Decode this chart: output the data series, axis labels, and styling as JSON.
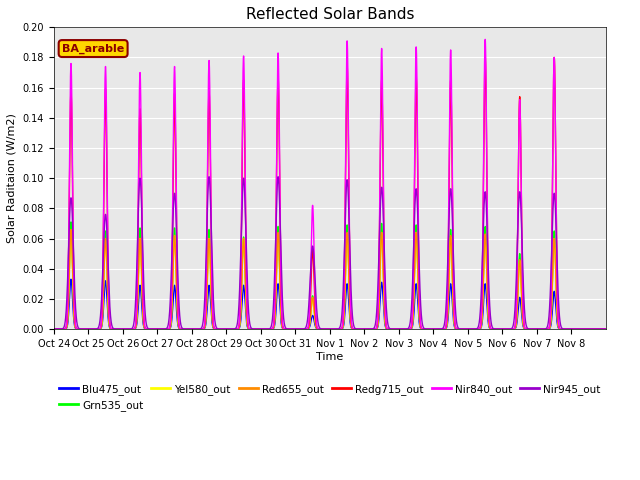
{
  "title": "Reflected Solar Bands",
  "xlabel": "Time",
  "ylabel": "Solar Raditaion (W/m2)",
  "ylim": [
    0.0,
    0.2
  ],
  "yticks": [
    0.0,
    0.02,
    0.04,
    0.06,
    0.08,
    0.1,
    0.12,
    0.14,
    0.16,
    0.18,
    0.2
  ],
  "annotation_text": "BA_arable",
  "annotation_color": "#8B0000",
  "annotation_bg": "#FFD700",
  "series_colors": {
    "Blu475_out": "#0000FF",
    "Grn535_out": "#00FF00",
    "Yel580_out": "#FFFF00",
    "Red655_out": "#FF8C00",
    "Redg715_out": "#FF0000",
    "Nir840_out": "#FF00FF",
    "Nir945_out": "#9900CC"
  },
  "lw": 1.0,
  "bg_color": "#E8E8E8",
  "grid_color": "white",
  "n_days": 16,
  "day_labels": [
    "Oct 24",
    "Oct 25",
    "Oct 26",
    "Oct 27",
    "Oct 28",
    "Oct 29",
    "Oct 30",
    "Oct 31",
    "Nov 1",
    "Nov 2",
    "Nov 3",
    "Nov 4",
    "Nov 5",
    "Nov 6",
    "Nov 7",
    "Nov 8"
  ],
  "sigma": 0.045,
  "sigma_nir945": 0.07,
  "peaks_blu": [
    0.033,
    0.032,
    0.029,
    0.029,
    0.029,
    0.029,
    0.03,
    0.009,
    0.03,
    0.031,
    0.03,
    0.03,
    0.03,
    0.021,
    0.025,
    0.0
  ],
  "peaks_grn": [
    0.071,
    0.065,
    0.067,
    0.067,
    0.066,
    0.061,
    0.068,
    0.022,
    0.069,
    0.07,
    0.069,
    0.066,
    0.068,
    0.05,
    0.065,
    0.0
  ],
  "peaks_yel": [
    0.065,
    0.06,
    0.06,
    0.062,
    0.06,
    0.06,
    0.063,
    0.02,
    0.063,
    0.064,
    0.064,
    0.061,
    0.062,
    0.045,
    0.06,
    0.0
  ],
  "peaks_red": [
    0.066,
    0.06,
    0.06,
    0.062,
    0.06,
    0.06,
    0.064,
    0.021,
    0.064,
    0.064,
    0.064,
    0.062,
    0.063,
    0.046,
    0.06,
    0.0
  ],
  "peaks_redg": [
    0.158,
    0.159,
    0.146,
    0.156,
    0.158,
    0.165,
    0.167,
    0.053,
    0.175,
    0.165,
    0.168,
    0.165,
    0.181,
    0.154,
    0.18,
    0.0
  ],
  "peaks_nir840": [
    0.176,
    0.174,
    0.17,
    0.174,
    0.178,
    0.181,
    0.183,
    0.082,
    0.191,
    0.186,
    0.187,
    0.185,
    0.192,
    0.152,
    0.18,
    0.0
  ],
  "peaks_nir945": [
    0.087,
    0.076,
    0.1,
    0.09,
    0.101,
    0.1,
    0.101,
    0.055,
    0.099,
    0.094,
    0.093,
    0.093,
    0.091,
    0.091,
    0.09,
    0.0
  ],
  "figsize": [
    6.4,
    4.8
  ],
  "dpi": 100
}
